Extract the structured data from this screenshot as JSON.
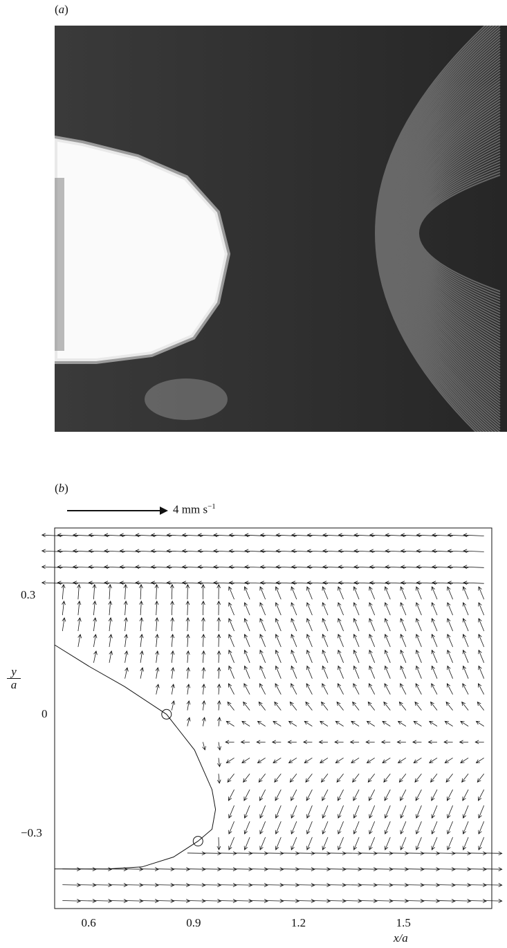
{
  "panel_a": {
    "label_paren_open": "(",
    "label": "a",
    "label_paren_close": ")"
  },
  "panel_b": {
    "label_paren_open": "(",
    "label": "b",
    "label_paren_close": ")",
    "scale_value": "4 mm s",
    "scale_exponent": "−1"
  },
  "chart_data": {
    "type": "vector-field",
    "xlabel_num": "x",
    "xlabel_den": "a",
    "ylabel_num": "y",
    "ylabel_den": "a",
    "x_ticks": [
      "0.6",
      "0.9",
      "1.2",
      "1.5"
    ],
    "x_tick_values": [
      0.6,
      0.9,
      1.2,
      1.5
    ],
    "y_ticks": [
      "0.3",
      "0",
      "−0.3"
    ],
    "y_tick_values": [
      0.3,
      0,
      -0.3
    ],
    "xlim": [
      0.5,
      1.75
    ],
    "ylim": [
      -0.49,
      0.47
    ],
    "scale_arrow_mm_s": 4,
    "body_boundary": [
      [
        0.5,
        0.175
      ],
      [
        0.6,
        0.12
      ],
      [
        0.7,
        0.07
      ],
      [
        0.82,
        0.0
      ],
      [
        0.9,
        -0.09
      ],
      [
        0.95,
        -0.19
      ],
      [
        0.96,
        -0.24
      ],
      [
        0.95,
        -0.29
      ],
      [
        0.91,
        -0.32
      ],
      [
        0.84,
        -0.36
      ],
      [
        0.75,
        -0.385
      ],
      [
        0.65,
        -0.39
      ],
      [
        0.5,
        -0.39
      ]
    ],
    "marked_points": [
      [
        0.82,
        0.0
      ],
      [
        0.91,
        -0.32
      ]
    ]
  }
}
